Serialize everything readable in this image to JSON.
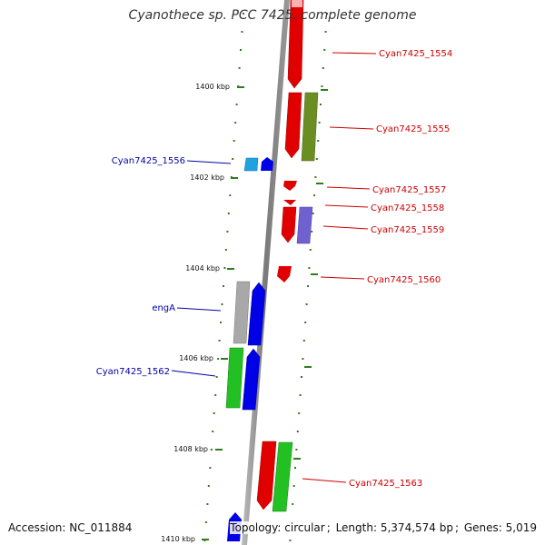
{
  "title": "Cyanothece sp. PCC 7425, complete genome",
  "footer": {
    "accession_label": "Accession:",
    "accession": "NC_011884",
    "topology_label": "Topology:",
    "topology": "circular",
    "length_label": "Length:",
    "length": "5,374,574 bp",
    "genes_label": "Genes:",
    "genes": "5,019"
  },
  "colors": {
    "backbone": "#8a8a8a",
    "ticks": "#2e7d1a",
    "forward_label": "#cc0000",
    "reverse_label": "#0000aa"
  },
  "kbp_marks": [
    "1400 kbp",
    "1402 kbp",
    "1404 kbp",
    "1406 kbp",
    "1408 kbp",
    "1410 kbp"
  ],
  "gene_labels": [
    {
      "name": "Cyan7425_1554",
      "strand": "forward"
    },
    {
      "name": "Cyan7425_1555",
      "strand": "forward"
    },
    {
      "name": "Cyan7425_1556",
      "strand": "reverse"
    },
    {
      "name": "Cyan7425_1557",
      "strand": "forward"
    },
    {
      "name": "Cyan7425_1558",
      "strand": "forward"
    },
    {
      "name": "Cyan7425_1559",
      "strand": "forward"
    },
    {
      "name": "Cyan7425_1560",
      "strand": "forward"
    },
    {
      "name": "engA",
      "strand": "reverse"
    },
    {
      "name": "Cyan7425_1562",
      "strand": "reverse"
    },
    {
      "name": "Cyan7425_1563",
      "strand": "forward"
    }
  ],
  "gene_colors": [
    "#e00000",
    "#6b8e23",
    "#1fa3e0",
    "#0000e6",
    "#7060d0",
    "#a8a8a8",
    "#22c022",
    "#ffb0b0"
  ]
}
